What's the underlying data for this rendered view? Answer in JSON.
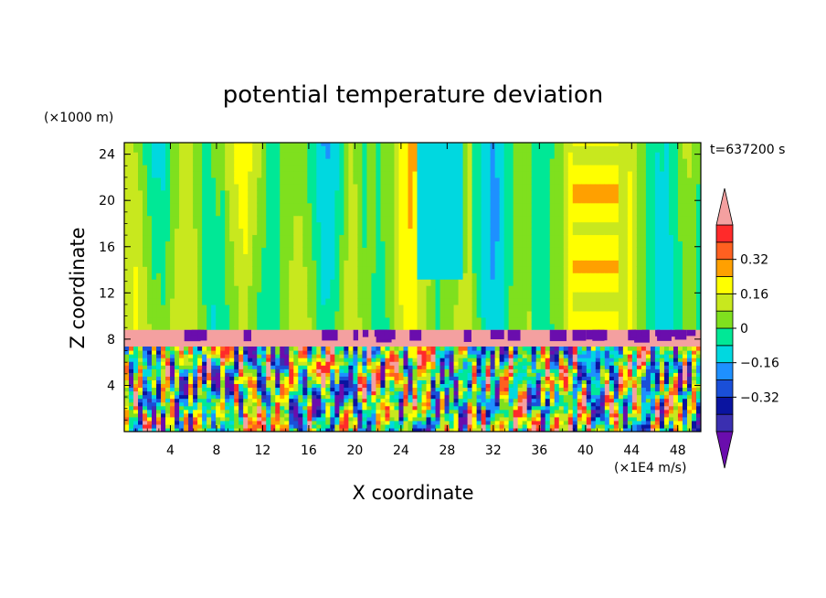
{
  "chart_data": {
    "type": "heatmap",
    "title": "potential temperature deviation",
    "xlabel": "X coordinate",
    "ylabel": "Z coordinate",
    "x_unit": "(×1E4 m/s)",
    "y_unit": "(×1000 m)",
    "time_label": "t=637200 s",
    "xlim": [
      0,
      50
    ],
    "ylim": [
      0,
      25
    ],
    "x_ticks": [
      "4",
      "8",
      "12",
      "16",
      "20",
      "24",
      "28",
      "32",
      "36",
      "40",
      "44",
      "48"
    ],
    "x_tick_values": [
      4,
      8,
      12,
      16,
      20,
      24,
      28,
      32,
      36,
      40,
      44,
      48
    ],
    "y_ticks": [
      "4",
      "8",
      "12",
      "16",
      "20",
      "24"
    ],
    "y_tick_values": [
      4,
      8,
      12,
      16,
      20,
      24
    ],
    "colorbar": {
      "levels": [
        -0.48,
        -0.4,
        -0.32,
        -0.24,
        -0.16,
        -0.08,
        0,
        0.08,
        0.16,
        0.24,
        0.32,
        0.4,
        0.48
      ],
      "colors": [
        "#6a0dad",
        "#3a2fb0",
        "#0a14a0",
        "#1a4fd8",
        "#1e90ff",
        "#00d8e0",
        "#00e896",
        "#7fe01e",
        "#c8e81e",
        "#ffff00",
        "#ffa000",
        "#ff6020",
        "#ff2a2a",
        "#f4a0a0"
      ],
      "labels": [
        "0.32",
        "0.16",
        "0",
        "−0.16",
        "−0.32"
      ],
      "label_values": [
        0.32,
        0.16,
        0,
        -0.16,
        -0.32
      ]
    },
    "structure": {
      "upper_layer_z": [
        8.8,
        25
      ],
      "upper_layer_value_range": [
        -0.1,
        0.3
      ],
      "inversion_band_z": [
        7.2,
        8.8
      ],
      "inversion_band_value": 0.48,
      "lower_layer_z": [
        0,
        7.2
      ],
      "lower_layer_value_range": [
        -0.48,
        0.48
      ]
    }
  }
}
